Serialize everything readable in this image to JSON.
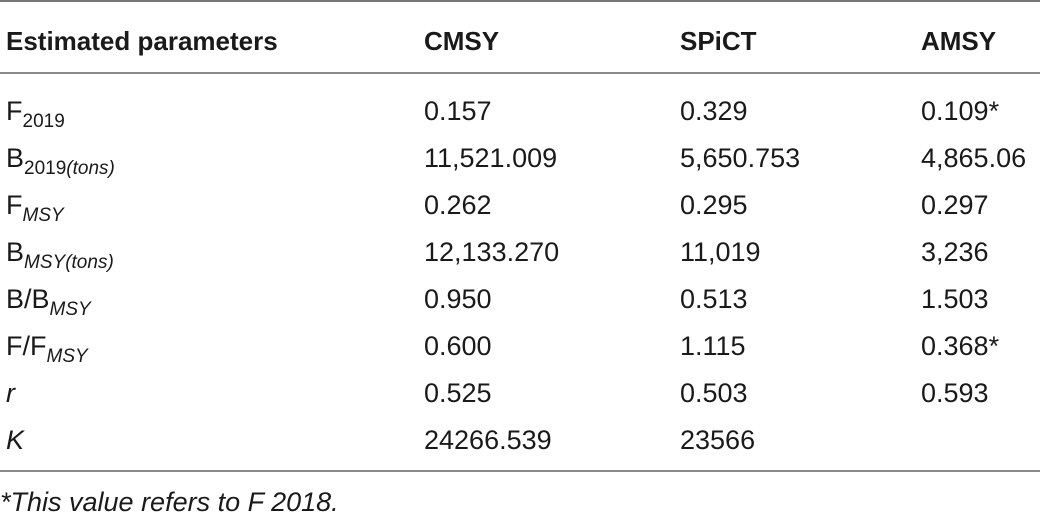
{
  "table": {
    "headers": [
      "Estimated parameters",
      "CMSY",
      "SPiCT",
      "AMSY"
    ],
    "rows": [
      {
        "param": "F",
        "param_sub": "2019",
        "param_sub2": "",
        "cmsy": "0.157",
        "spict": "0.329",
        "amsy": "0.109*"
      },
      {
        "param": "B",
        "param_sub": "2019",
        "param_sub2": "(tons)",
        "cmsy": "11,521.009",
        "spict": "5,650.753",
        "amsy": "4,865.06"
      },
      {
        "param": "F",
        "param_sub": "MSY",
        "param_sub2": "",
        "cmsy": "0.262",
        "spict": "0.295",
        "amsy": "0.297"
      },
      {
        "param": "B",
        "param_sub": "MSY",
        "param_sub2": "(tons)",
        "cmsy": "12,133.270",
        "spict": "11,019",
        "amsy": "3,236"
      },
      {
        "param": "B/B",
        "param_sub": "MSY",
        "param_sub2": "",
        "cmsy": "0.950",
        "spict": "0.513",
        "amsy": "1.503"
      },
      {
        "param": "F/F",
        "param_sub": "MSY",
        "param_sub2": "",
        "cmsy": "0.600",
        "spict": "1.115",
        "amsy": "0.368*"
      },
      {
        "param": "r",
        "param_sub": "",
        "param_sub2": "",
        "cmsy": "0.525",
        "spict": "0.503",
        "amsy": "0.593"
      },
      {
        "param": "K",
        "param_sub": "",
        "param_sub2": "",
        "cmsy": "24266.539",
        "spict": "23566",
        "amsy": ""
      }
    ]
  },
  "footnote": "*This value refers to F 2018."
}
